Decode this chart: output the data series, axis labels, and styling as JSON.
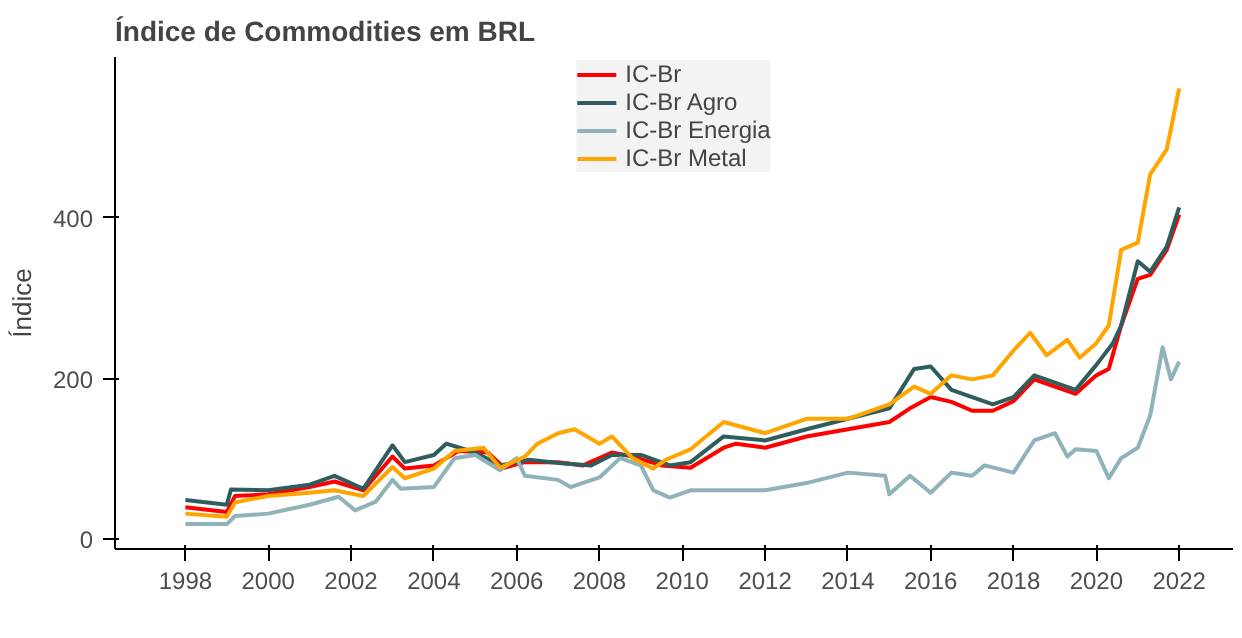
{
  "chart_data": {
    "type": "line",
    "title": "Índice de Commodities em BRL",
    "ylabel": "Índice",
    "xlim": [
      1996.3,
      2023.3
    ],
    "ylim": [
      -12,
      600
    ],
    "xticks": [
      1998,
      2000,
      2002,
      2004,
      2006,
      2008,
      2010,
      2012,
      2014,
      2016,
      2018,
      2020,
      2022
    ],
    "yticks": [
      0,
      200,
      400
    ],
    "grid": false,
    "legend": "top",
    "line_style": "solid",
    "marker": "none",
    "series": [
      {
        "name": "IC-Br",
        "color": "#ff0000",
        "x": [
          1998,
          1999,
          1999.2,
          2000,
          2001,
          2001.6,
          2002.3,
          2003,
          2003.3,
          2004,
          2004.6,
          2005.3,
          2005.7,
          2006.2,
          2007,
          2007.6,
          2008.3,
          2008.8,
          2009.5,
          2010.2,
          2011,
          2011.3,
          2012,
          2013,
          2014,
          2015,
          2015.5,
          2016,
          2016.5,
          2017,
          2017.5,
          2018,
          2018.5,
          2019,
          2019.5,
          2020,
          2020.3,
          2020.6,
          2021,
          2021.3,
          2021.7,
          2022
        ],
        "values": [
          40,
          34,
          54,
          56,
          65,
          72,
          61,
          103,
          88,
          92,
          110,
          108,
          89,
          96,
          96,
          92,
          108,
          103,
          92,
          89,
          114,
          119,
          114,
          128,
          137,
          146,
          163,
          177,
          171,
          160,
          160,
          172,
          199,
          190,
          181,
          204,
          212,
          266,
          324,
          329,
          360,
          404
        ]
      },
      {
        "name": "IC-Br Agro",
        "color": "#2f5d5d",
        "x": [
          1998,
          1999,
          1999.1,
          2000,
          2001,
          2001.6,
          2002.3,
          2003,
          2003.3,
          2004,
          2004.3,
          2005,
          2005.6,
          2006.3,
          2007,
          2007.8,
          2008.3,
          2009,
          2009.7,
          2010.2,
          2011,
          2012,
          2013,
          2014,
          2015,
          2015.6,
          2016,
          2016.5,
          2017,
          2017.5,
          2018,
          2018.5,
          2019,
          2019.5,
          2020,
          2020.4,
          2020.6,
          2021,
          2021.3,
          2021.7,
          2022
        ],
        "values": [
          49,
          43,
          62,
          61,
          68,
          79,
          63,
          117,
          96,
          105,
          119,
          108,
          92,
          99,
          95,
          92,
          105,
          105,
          92,
          96,
          128,
          123,
          137,
          150,
          163,
          212,
          215,
          186,
          177,
          168,
          177,
          204,
          195,
          186,
          217,
          244,
          266,
          346,
          333,
          364,
          413
        ]
      },
      {
        "name": "IC-Br Energia",
        "color": "#8fb3b8",
        "x": [
          1998,
          1999,
          1999.2,
          2000,
          2001,
          2001.7,
          2002.1,
          2002.6,
          2003,
          2003.2,
          2004,
          2004.5,
          2005,
          2005.6,
          2006,
          2006.2,
          2007,
          2007.3,
          2008,
          2008.5,
          2009,
          2009.3,
          2009.7,
          2010.2,
          2011,
          2012,
          2013,
          2014,
          2014.9,
          2015,
          2015.5,
          2016,
          2016.5,
          2017,
          2017.3,
          2018,
          2018.5,
          2019,
          2019.3,
          2019.5,
          2020,
          2020.3,
          2020.6,
          2021,
          2021.3,
          2021.6,
          2021.8,
          2022
        ],
        "values": [
          19,
          19,
          29,
          32,
          43,
          53,
          36,
          47,
          74,
          63,
          65,
          101,
          105,
          86,
          101,
          79,
          74,
          65,
          77,
          101,
          92,
          61,
          52,
          61,
          61,
          61,
          70,
          83,
          79,
          56,
          79,
          58,
          83,
          79,
          92,
          83,
          123,
          132,
          103,
          112,
          110,
          76,
          101,
          114,
          154,
          239,
          199,
          221
        ]
      },
      {
        "name": "IC-Br Metal",
        "color": "#ffa500",
        "x": [
          1998,
          1999,
          1999.2,
          2000,
          2001,
          2001.6,
          2002.3,
          2003,
          2003.3,
          2004,
          2004.5,
          2005.2,
          2005.6,
          2006.2,
          2006.5,
          2007,
          2007.4,
          2008,
          2008.3,
          2008.8,
          2009.3,
          2009.6,
          2010.2,
          2011,
          2012,
          2013,
          2014,
          2015,
          2015.6,
          2016,
          2016.5,
          2017,
          2017.5,
          2018,
          2018.4,
          2018.8,
          2019.3,
          2019.6,
          2020,
          2020.3,
          2020.6,
          2021,
          2021.3,
          2021.7,
          2022
        ],
        "values": [
          32,
          28,
          46,
          54,
          58,
          61,
          54,
          90,
          76,
          88,
          110,
          114,
          89,
          103,
          119,
          132,
          137,
          119,
          128,
          101,
          88,
          99,
          112,
          146,
          132,
          150,
          150,
          168,
          190,
          181,
          204,
          199,
          204,
          235,
          257,
          229,
          248,
          226,
          244,
          266,
          360,
          369,
          454,
          485,
          561
        ]
      }
    ]
  }
}
